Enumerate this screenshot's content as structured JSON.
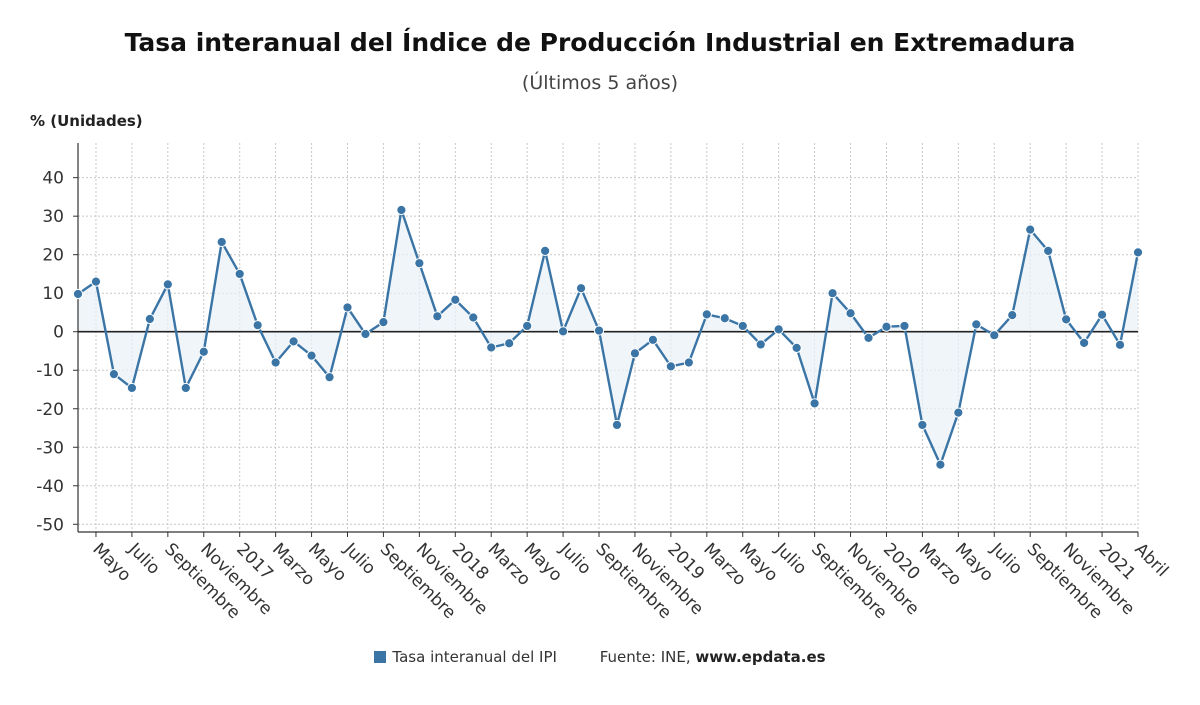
{
  "chart_data": {
    "type": "line",
    "title": "Tasa interanual del Índice de Producción Industrial en Extremadura",
    "subtitle": "(Últimos 5 años)",
    "ylabel": "% (Unidades)",
    "ylim": [
      -52,
      49
    ],
    "yticks": [
      40,
      30,
      20,
      10,
      0,
      -10,
      -20,
      -30,
      -40,
      -50
    ],
    "xtick_labels": [
      "Mayo",
      "Julio",
      "Septiembre",
      "Noviembre",
      "2017",
      "Marzo",
      "Mayo",
      "Julio",
      "Septiembre",
      "Noviembre",
      "2018",
      "Marzo",
      "Mayo",
      "Julio",
      "Septiembre",
      "Noviembre",
      "2019",
      "Marzo",
      "Mayo",
      "Julio",
      "Septiembre",
      "Noviembre",
      "2020",
      "Marzo",
      "Mayo",
      "Julio",
      "Septiembre",
      "Noviembre",
      "2021",
      "Abril"
    ],
    "grid": true,
    "series": [
      {
        "name": "Tasa interanual del IPI",
        "color": "#3a75a6",
        "values": [
          9.8,
          13.0,
          -11.0,
          -14.6,
          3.3,
          12.3,
          -14.6,
          -5.2,
          23.3,
          15.0,
          1.7,
          -8.0,
          -2.5,
          -6.2,
          -11.8,
          6.3,
          -0.6,
          2.5,
          31.6,
          17.8,
          4.0,
          8.3,
          3.7,
          -4.1,
          -3.0,
          1.5,
          21.0,
          0.1,
          11.3,
          0.3,
          -24.2,
          -5.6,
          -2.1,
          -9.0,
          -8.0,
          4.5,
          3.5,
          1.5,
          -3.3,
          0.6,
          -4.2,
          -18.6,
          10.0,
          4.8,
          -1.6,
          1.3,
          1.5,
          -24.2,
          -34.5,
          -21.0,
          1.9,
          -0.9,
          4.3,
          26.5,
          21.0,
          3.2,
          -2.9,
          4.4,
          -3.4,
          20.6
        ]
      }
    ]
  },
  "legend": {
    "series_label": "Tasa interanual del IPI",
    "source_label": "Fuente: INE,",
    "source_site": "www.epdata.es"
  }
}
